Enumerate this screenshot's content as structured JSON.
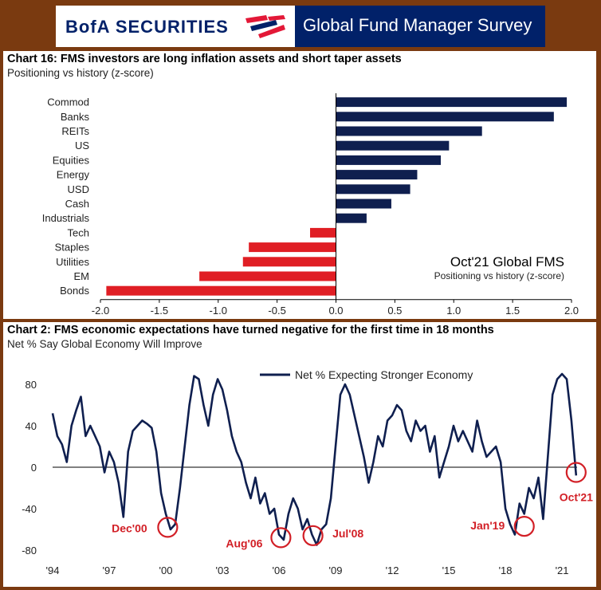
{
  "banner": {
    "logo_text": "BofA SECURITIES",
    "survey_title": "Global Fund Manager Survey"
  },
  "colors": {
    "navy": "#0f1f4f",
    "red": "#e01e24",
    "annotation_red": "#d21f26",
    "brand_navy": "#012169"
  },
  "chart1": {
    "title": "Chart 16: FMS investors are long inflation assets and short taper assets",
    "subtitle": "Positioning vs history (z-score)",
    "inset_title": "Oct'21 Global FMS",
    "inset_subtitle": "Positioning vs history (z-score)"
  },
  "chart2": {
    "title": "Chart 2: FMS economic expectations have turned negative for the first time in 18 months",
    "subtitle": "Net % Say Global Economy Will Improve"
  },
  "chart_data": [
    {
      "type": "bar",
      "orientation": "horizontal",
      "title": "Chart 16: FMS investors are long inflation assets and short taper assets",
      "subtitle": "Positioning vs history (z-score)",
      "annotation": [
        "Oct'21 Global FMS",
        "Positioning vs history (z-score)"
      ],
      "categories": [
        "Commod",
        "Banks",
        "REITs",
        "US",
        "Equities",
        "Energy",
        "USD",
        "Cash",
        "Industrials",
        "Tech",
        "Staples",
        "Utilities",
        "EM",
        "Bonds"
      ],
      "values": [
        1.96,
        1.85,
        1.24,
        0.96,
        0.89,
        0.69,
        0.63,
        0.47,
        0.26,
        -0.22,
        -0.74,
        -0.79,
        -1.16,
        -1.95
      ],
      "xlim": [
        -2.0,
        2.0
      ],
      "xticks": [
        "-2.0",
        "-1.5",
        "-1.0",
        "-0.5",
        "0.0",
        "0.5",
        "1.0",
        "1.5",
        "2.0"
      ],
      "xtick_values": [
        -2.0,
        -1.5,
        -1.0,
        -0.5,
        0.0,
        0.5,
        1.0,
        1.5,
        2.0
      ],
      "positive_color": "#0f1f4f",
      "negative_color": "#e01e24",
      "grid": false
    },
    {
      "type": "line",
      "title": "Chart 2: FMS economic expectations have turned negative for the first time in 18 months",
      "subtitle": "Net % Say Global Economy Will Improve",
      "legend": "top-center",
      "series": [
        {
          "name": "Net % Expecting Stronger Economy",
          "color": "#0f1f4f",
          "x": [
            1994.0,
            1994.25,
            1994.5,
            1994.75,
            1995.0,
            1995.25,
            1995.5,
            1995.75,
            1996.0,
            1996.25,
            1996.5,
            1996.75,
            1997.0,
            1997.25,
            1997.5,
            1997.75,
            1998.0,
            1998.25,
            1998.5,
            1998.75,
            1999.0,
            1999.25,
            1999.5,
            1999.75,
            2000.0,
            2000.25,
            2000.5,
            2000.75,
            2001.0,
            2001.25,
            2001.5,
            2001.75,
            2002.0,
            2002.25,
            2002.5,
            2002.75,
            2003.0,
            2003.25,
            2003.5,
            2003.75,
            2004.0,
            2004.25,
            2004.5,
            2004.75,
            2005.0,
            2005.25,
            2005.5,
            2005.75,
            2006.0,
            2006.25,
            2006.5,
            2006.75,
            2007.0,
            2007.25,
            2007.5,
            2007.75,
            2008.0,
            2008.25,
            2008.5,
            2008.75,
            2009.0,
            2009.25,
            2009.5,
            2009.75,
            2010.0,
            2010.25,
            2010.5,
            2010.75,
            2011.0,
            2011.25,
            2011.5,
            2011.75,
            2012.0,
            2012.25,
            2012.5,
            2012.75,
            2013.0,
            2013.25,
            2013.5,
            2013.75,
            2014.0,
            2014.25,
            2014.5,
            2014.75,
            2015.0,
            2015.25,
            2015.5,
            2015.75,
            2016.0,
            2016.25,
            2016.5,
            2016.75,
            2017.0,
            2017.25,
            2017.5,
            2017.75,
            2018.0,
            2018.25,
            2018.5,
            2018.75,
            2019.0,
            2019.25,
            2019.5,
            2019.75,
            2020.0,
            2020.25,
            2020.5,
            2020.75,
            2021.0,
            2021.25,
            2021.5,
            2021.75
          ],
          "y": [
            52,
            30,
            22,
            5,
            40,
            55,
            68,
            30,
            40,
            30,
            20,
            -5,
            15,
            5,
            -15,
            -48,
            15,
            35,
            40,
            45,
            42,
            38,
            15,
            -25,
            -45,
            -60,
            -55,
            -20,
            20,
            60,
            88,
            85,
            60,
            40,
            70,
            85,
            75,
            55,
            30,
            15,
            5,
            -15,
            -30,
            -10,
            -35,
            -25,
            -45,
            -40,
            -65,
            -70,
            -45,
            -30,
            -40,
            -60,
            -50,
            -65,
            -75,
            -60,
            -55,
            -30,
            20,
            70,
            80,
            70,
            50,
            30,
            10,
            -15,
            5,
            30,
            20,
            45,
            50,
            60,
            55,
            35,
            25,
            45,
            35,
            40,
            15,
            30,
            -10,
            5,
            20,
            40,
            25,
            35,
            25,
            15,
            45,
            25,
            10,
            15,
            20,
            5,
            -40,
            -55,
            -65,
            -35,
            -45,
            -20,
            -30,
            -10,
            -50,
            10,
            70,
            85,
            90,
            85,
            45,
            -8
          ],
          "x_range": [
            1994,
            2021.8
          ],
          "xticks": [
            "'94",
            "'97",
            "'00",
            "'03",
            "'06",
            "'09",
            "'12",
            "'15",
            "'18",
            "'21"
          ],
          "xtick_values": [
            1994,
            1997,
            2000,
            2003,
            2006,
            2009,
            2012,
            2015,
            2018,
            2021
          ]
        }
      ],
      "ylim": [
        -80,
        100
      ],
      "yticks": [
        80,
        40,
        0,
        -40,
        -80
      ],
      "grid": false,
      "annotations": [
        {
          "label": "Dec'00",
          "x": 2000.1,
          "y": -58
        },
        {
          "label": "Aug'06",
          "x": 2006.1,
          "y": -68
        },
        {
          "label": "Jul'08",
          "x": 2007.8,
          "y": -66
        },
        {
          "label": "Jan'19",
          "x": 2019.0,
          "y": -57
        },
        {
          "label": "Oct'21",
          "x": 2021.75,
          "y": -5
        }
      ]
    }
  ]
}
